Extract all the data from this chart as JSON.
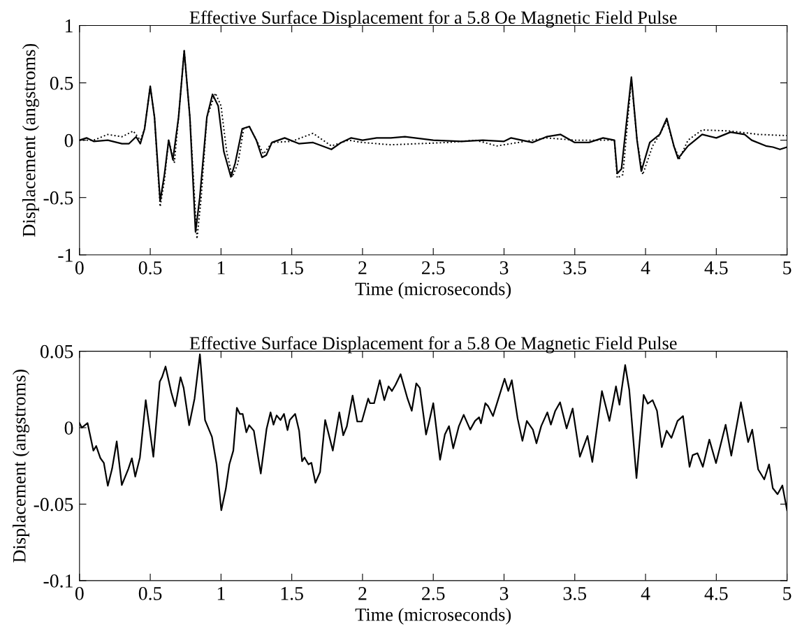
{
  "chart_data": [
    {
      "type": "line",
      "title": "Effective Surface Displacement for a 5.8 Oe Magnetic Field Pulse",
      "xlabel": "Time (microseconds)",
      "ylabel": "Displacement (angstroms)",
      "xlim": [
        0,
        5
      ],
      "ylim": [
        -1,
        1
      ],
      "xticks": [
        0,
        0.5,
        1,
        1.5,
        2,
        2.5,
        3,
        3.5,
        4,
        4.5,
        5
      ],
      "yticks": [
        -1,
        -0.5,
        0,
        0.5,
        1
      ],
      "grid": false,
      "series": [
        {
          "color": "#000000",
          "line_style": "solid",
          "x": [
            0,
            0.05,
            0.1,
            0.2,
            0.3,
            0.35,
            0.4,
            0.43,
            0.46,
            0.5,
            0.53,
            0.57,
            0.6,
            0.63,
            0.66,
            0.7,
            0.74,
            0.78,
            0.82,
            0.85,
            0.9,
            0.94,
            0.98,
            1.02,
            1.07,
            1.1,
            1.15,
            1.2,
            1.25,
            1.29,
            1.32,
            1.36,
            1.45,
            1.55,
            1.65,
            1.78,
            1.85,
            1.92,
            2.0,
            2.1,
            2.2,
            2.3,
            2.5,
            2.7,
            2.85,
            3.0,
            3.05,
            3.2,
            3.3,
            3.4,
            3.5,
            3.6,
            3.7,
            3.78,
            3.8,
            3.83,
            3.9,
            3.94,
            3.97,
            4.03,
            4.1,
            4.15,
            4.2,
            4.23,
            4.3,
            4.4,
            4.5,
            4.6,
            4.7,
            4.75,
            4.85,
            4.9,
            4.95,
            5.0
          ],
          "values": [
            0,
            0.02,
            -0.01,
            0.0,
            -0.03,
            -0.03,
            0.03,
            -0.03,
            0.1,
            0.47,
            0.2,
            -0.53,
            -0.3,
            0.0,
            -0.17,
            0.2,
            0.78,
            0.2,
            -0.8,
            -0.5,
            0.2,
            0.4,
            0.3,
            -0.1,
            -0.32,
            -0.2,
            0.1,
            0.12,
            0.0,
            -0.15,
            -0.13,
            -0.02,
            0.02,
            -0.03,
            -0.02,
            -0.08,
            -0.02,
            0.02,
            0.0,
            0.02,
            0.02,
            0.03,
            0.0,
            -0.01,
            0.0,
            -0.01,
            0.02,
            -0.02,
            0.03,
            0.05,
            -0.02,
            -0.02,
            0.02,
            0.0,
            -0.29,
            -0.25,
            0.55,
            0.0,
            -0.27,
            -0.02,
            0.05,
            0.19,
            -0.05,
            -0.16,
            -0.05,
            0.05,
            0.02,
            0.07,
            0.05,
            0.0,
            -0.05,
            -0.06,
            -0.08,
            -0.06
          ]
        },
        {
          "color": "#000000",
          "line_style": "dotted",
          "x": [
            0,
            0.1,
            0.2,
            0.3,
            0.38,
            0.43,
            0.46,
            0.5,
            0.53,
            0.57,
            0.6,
            0.63,
            0.67,
            0.7,
            0.74,
            0.78,
            0.83,
            0.86,
            0.9,
            0.96,
            1.0,
            1.04,
            1.08,
            1.12,
            1.16,
            1.2,
            1.25,
            1.3,
            1.36,
            1.5,
            1.65,
            1.78,
            1.9,
            2.0,
            2.2,
            2.4,
            2.6,
            2.8,
            2.95,
            3.1,
            3.3,
            3.5,
            3.7,
            3.78,
            3.8,
            3.84,
            3.9,
            3.94,
            3.98,
            4.05,
            4.1,
            4.15,
            4.2,
            4.24,
            4.3,
            4.4,
            4.6,
            4.8,
            5.0
          ],
          "values": [
            0,
            0.0,
            0.05,
            0.03,
            0.08,
            0.0,
            0.1,
            0.47,
            0.2,
            -0.58,
            -0.35,
            0.0,
            -0.2,
            0.2,
            0.78,
            0.2,
            -0.86,
            -0.5,
            0.2,
            0.41,
            0.3,
            -0.1,
            -0.32,
            -0.2,
            0.1,
            0.12,
            0.0,
            -0.12,
            -0.02,
            -0.01,
            0.06,
            -0.05,
            0.0,
            -0.02,
            -0.04,
            -0.03,
            -0.02,
            0.0,
            -0.05,
            -0.02,
            0.02,
            0.0,
            0.0,
            0.0,
            -0.33,
            -0.3,
            0.53,
            0.0,
            -0.3,
            -0.05,
            0.05,
            0.17,
            -0.05,
            -0.16,
            0.0,
            0.09,
            0.08,
            0.05,
            0.04
          ]
        }
      ]
    },
    {
      "type": "line",
      "title": "Effective Surface Displacement for a 5.8 Oe Magnetic Field Pulse",
      "xlabel": "Time (microseconds)",
      "ylabel": "Displacement (angstroms)",
      "xlim": [
        0,
        5
      ],
      "ylim": [
        -0.1,
        0.05
      ],
      "xticks": [
        0,
        0.5,
        1,
        1.5,
        2,
        2.5,
        3,
        3.5,
        4,
        4.5,
        5
      ],
      "yticks": [
        -0.1,
        -0.05,
        0,
        0.05
      ],
      "grid": false,
      "series": [
        {
          "color": "#000000",
          "line_style": "solid",
          "x": [
            0,
            0.016,
            0.057,
            0.098,
            0.118,
            0.148,
            0.172,
            0.2,
            0.23,
            0.263,
            0.299,
            0.345,
            0.37,
            0.394,
            0.427,
            0.468,
            0.496,
            0.522,
            0.567,
            0.583,
            0.608,
            0.649,
            0.677,
            0.714,
            0.736,
            0.775,
            0.813,
            0.851,
            0.887,
            0.936,
            0.969,
            1.002,
            1.034,
            1.059,
            1.087,
            1.112,
            1.133,
            1.153,
            1.179,
            1.199,
            1.232,
            1.281,
            1.322,
            1.35,
            1.371,
            1.393,
            1.42,
            1.445,
            1.47,
            1.486,
            1.524,
            1.552,
            1.573,
            1.59,
            1.618,
            1.639,
            1.667,
            1.7,
            1.736,
            1.79,
            1.836,
            1.864,
            1.889,
            1.93,
            1.963,
            1.995,
            2.04,
            2.053,
            2.082,
            2.122,
            2.154,
            2.184,
            2.208,
            2.233,
            2.269,
            2.318,
            2.348,
            2.38,
            2.405,
            2.449,
            2.466,
            2.5,
            2.548,
            2.582,
            2.611,
            2.641,
            2.681,
            2.715,
            2.761,
            2.795,
            2.824,
            2.837,
            2.868,
            2.888,
            2.922,
            2.957,
            3.004,
            3.03,
            3.055,
            3.096,
            3.13,
            3.161,
            3.204,
            3.229,
            3.263,
            3.306,
            3.331,
            3.362,
            3.396,
            3.442,
            3.485,
            3.536,
            3.59,
            3.624,
            3.692,
            3.745,
            3.791,
            3.816,
            3.856,
            3.885,
            3.936,
            3.987,
            4.016,
            4.05,
            4.081,
            4.115,
            4.149,
            4.183,
            4.226,
            4.265,
            4.311,
            4.333,
            4.367,
            4.405,
            4.451,
            4.498,
            4.566,
            4.606,
            4.674,
            4.725,
            4.754,
            4.796,
            4.839,
            4.873,
            4.899,
            4.933,
            4.967,
            5.0
          ],
          "values": [
            0.003,
            0,
            0.003,
            -0.015,
            -0.012,
            -0.02,
            -0.023,
            -0.038,
            -0.027,
            -0.009,
            -0.0375,
            -0.027,
            -0.02,
            -0.032,
            -0.0195,
            0.018,
            -0.001,
            -0.019,
            0.03,
            0.033,
            0.04,
            0.023,
            0.014,
            0.033,
            0.026,
            0.0016,
            0.019,
            0.048,
            0.005,
            -0.006,
            -0.024,
            -0.054,
            -0.04,
            -0.024,
            -0.015,
            0.013,
            0.009,
            0.009,
            -0.003,
            0.0016,
            -0.002,
            -0.03,
            -0.0008,
            0.01,
            0.002,
            0.008,
            0.005,
            0.009,
            -0.0016,
            0.005,
            0.009,
            -0.002,
            -0.022,
            -0.0195,
            -0.024,
            -0.023,
            -0.036,
            -0.029,
            0.005,
            -0.015,
            0.01,
            -0.005,
            0.0008,
            0.021,
            0.004,
            0.004,
            0.019,
            0.016,
            0.016,
            0.031,
            0.018,
            0.027,
            0.024,
            0.028,
            0.035,
            0.019,
            0.011,
            0.029,
            0.026,
            -0.0045,
            0.002,
            0.016,
            -0.021,
            -0.0045,
            0.001,
            -0.0135,
            0.001,
            0.0084,
            -0.0013,
            0.0044,
            0.0068,
            0.0028,
            0.016,
            0.014,
            0.0076,
            0.018,
            0.032,
            0.024,
            0.031,
            0.006,
            -0.0086,
            0.0044,
            -0.0013,
            -0.0102,
            0.0011,
            0.01,
            0.002,
            0.011,
            0.0166,
            -0.0005,
            0.0125,
            -0.019,
            -0.0054,
            -0.0224,
            0.0239,
            0.0044,
            0.027,
            0.015,
            0.041,
            0.0247,
            -0.033,
            0.0214,
            0.0157,
            0.018,
            0.011,
            -0.0127,
            -0.002,
            -0.0067,
            0.0044,
            0.0076,
            -0.0256,
            -0.018,
            -0.0167,
            -0.0256,
            -0.0078,
            -0.0232,
            0.0019,
            -0.0183,
            0.0166,
            -0.0094,
            -0.0013,
            -0.0273,
            -0.0338,
            -0.024,
            -0.0395,
            -0.0435,
            -0.0378,
            -0.054
          ]
        }
      ]
    }
  ]
}
